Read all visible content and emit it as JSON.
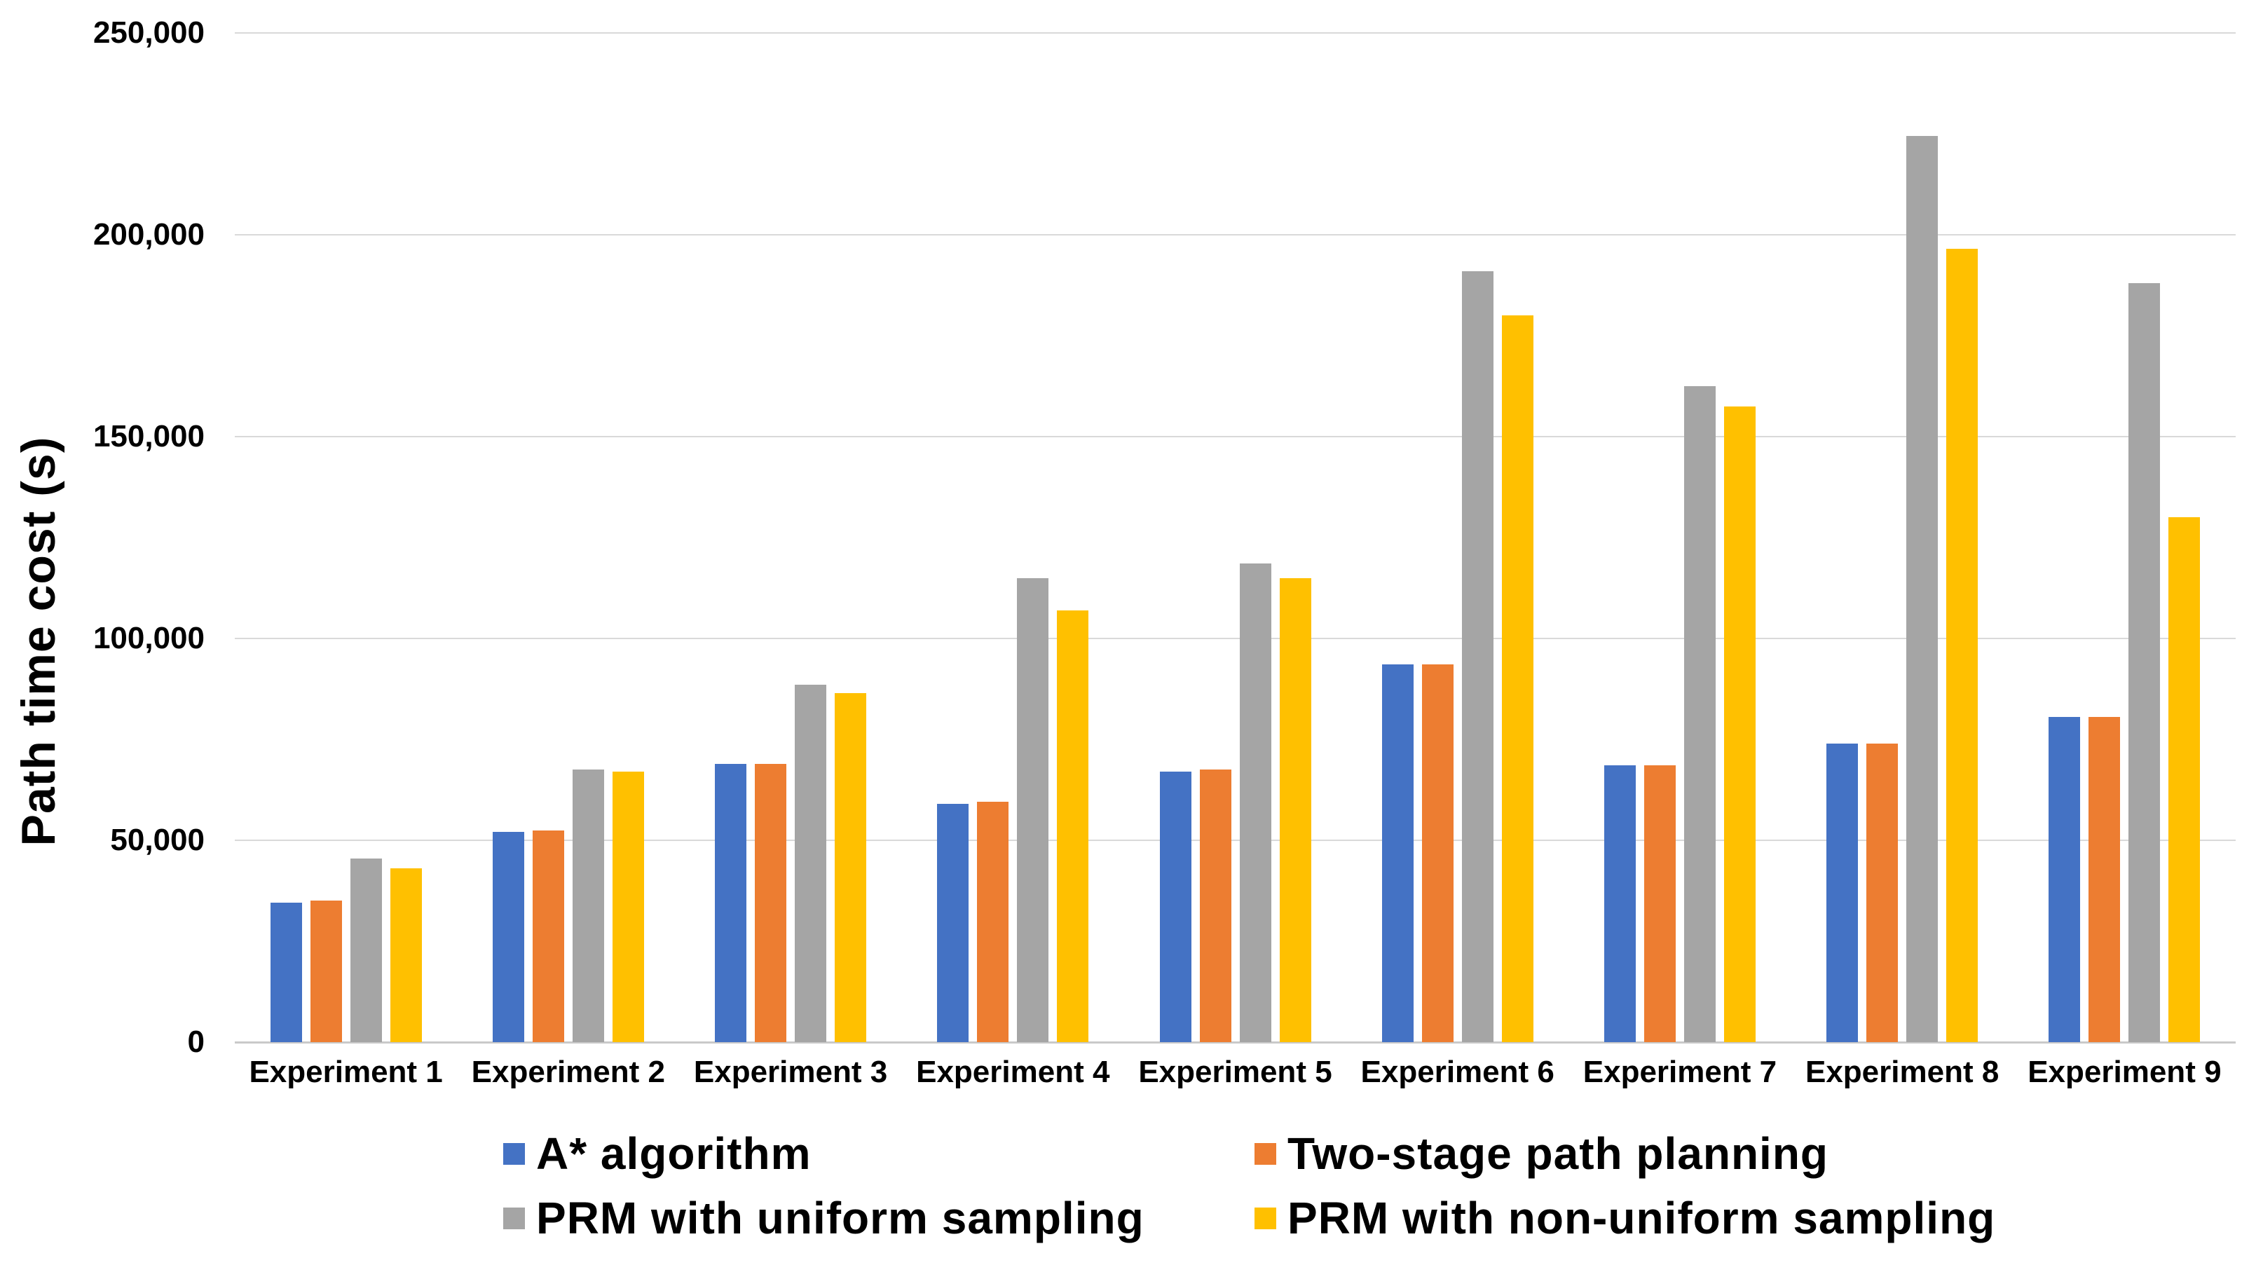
{
  "chart_data": {
    "type": "bar",
    "title": "",
    "xlabel": "",
    "ylabel": "Path time cost (s)",
    "categories": [
      "Experiment 1",
      "Experiment 2",
      "Experiment 3",
      "Experiment 4",
      "Experiment 5",
      "Experiment 6",
      "Experiment 7",
      "Experiment 8",
      "Experiment 9"
    ],
    "series": [
      {
        "name": "A* algorithm",
        "color": "#4472C4",
        "values": [
          34500,
          52000,
          69000,
          59000,
          67000,
          93500,
          68500,
          74000,
          80500
        ]
      },
      {
        "name": "Two-stage path planning",
        "color": "#ED7D31",
        "values": [
          35000,
          52500,
          69000,
          59500,
          67500,
          93500,
          68500,
          74000,
          80500
        ]
      },
      {
        "name": "PRM with uniform sampling",
        "color": "#A5A5A5",
        "values": [
          45500,
          67500,
          88500,
          115000,
          118500,
          191000,
          162500,
          224500,
          188000
        ]
      },
      {
        "name": "PRM with non-uniform sampling",
        "color": "#FFC000",
        "values": [
          43000,
          67000,
          86500,
          107000,
          115000,
          180000,
          157500,
          196500,
          130000
        ]
      }
    ],
    "ylim": [
      0,
      250000
    ],
    "ytick_step": 50000,
    "ytick_labels": [
      "0",
      "50,000",
      "100,000",
      "150,000",
      "200,000",
      "250,000"
    ],
    "grid": true,
    "legend_position": "bottom",
    "legend_rows": [
      [
        "A* algorithm",
        "Two-stage path planning"
      ],
      [
        "PRM with uniform sampling",
        "PRM with non-uniform sampling"
      ]
    ]
  },
  "colors": {
    "background": "#FFFFFF",
    "gridline": "#D9D9D9",
    "axis_line": "#C9C9C9",
    "text": "#000000"
  }
}
